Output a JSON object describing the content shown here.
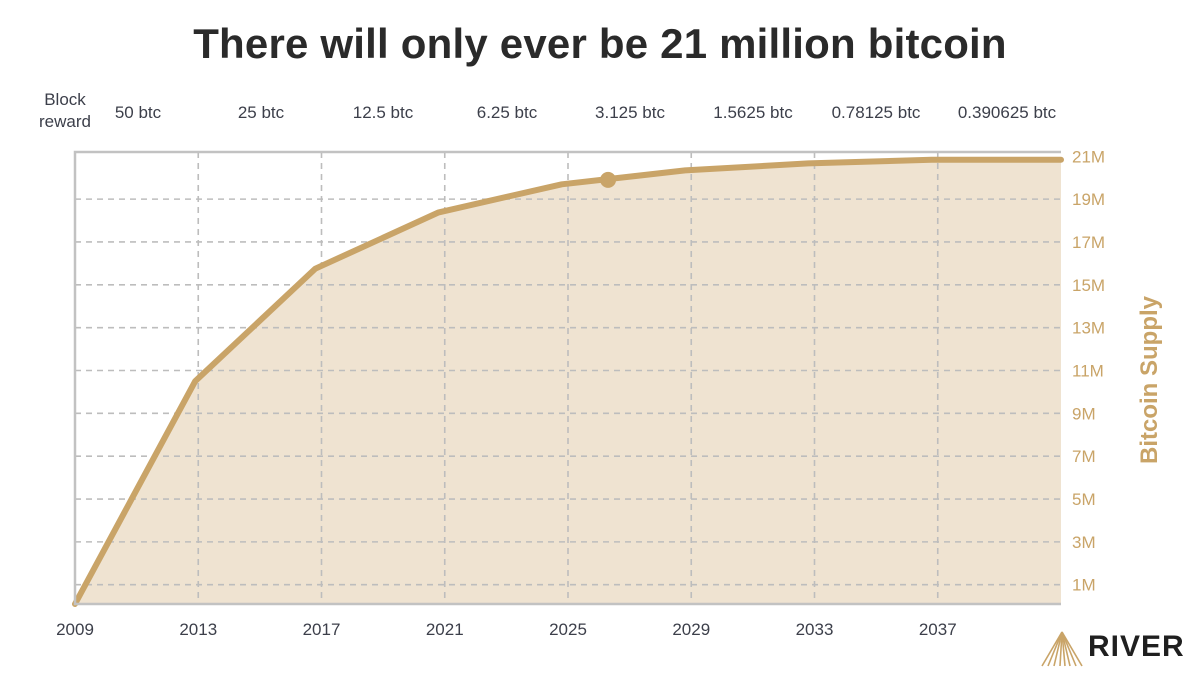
{
  "title": "There will only ever be 21 million bitcoin",
  "reward_label": [
    "Block",
    "reward"
  ],
  "block_rewards": [
    "50 btc",
    "25 btc",
    "12.5 btc",
    "6.25 btc",
    "3.125 btc",
    "1.5625 btc",
    "0.78125 btc",
    "0.390625 btc"
  ],
  "brand": "RIVER",
  "colors": {
    "line": "#c9a468",
    "fill": "#ede0cc",
    "grid": "#bdbdbd",
    "frame": "#c2c2c2",
    "axis_text": "#3c3f4a",
    "accent_text": "#c9a468"
  },
  "chart_data": {
    "type": "area",
    "title": "There will only ever be 21 million bitcoin",
    "xlabel": "",
    "ylabel": "Bitcoin Supply",
    "x_ticks": [
      "2009",
      "2013",
      "2017",
      "2021",
      "2025",
      "2029",
      "2033",
      "2037"
    ],
    "y_ticks": [
      "1M",
      "3M",
      "5M",
      "7M",
      "9M",
      "11M",
      "13M",
      "15M",
      "17M",
      "19M",
      "21M"
    ],
    "xlim": [
      2009,
      2041
    ],
    "ylim": [
      0.1,
      21.2
    ],
    "grid": true,
    "y_axis_position": "right",
    "series": [
      {
        "x": [
          2009,
          2012.9,
          2016.8,
          2020.8,
          2024.8,
          2028.8,
          2032.8,
          2036.8,
          2041
        ],
        "y": [
          0.1,
          10.5,
          15.75,
          18.38,
          19.69,
          20.34,
          20.67,
          20.84,
          20.84
        ]
      }
    ],
    "marker": {
      "x": 2026.3,
      "y": 19.9
    }
  }
}
